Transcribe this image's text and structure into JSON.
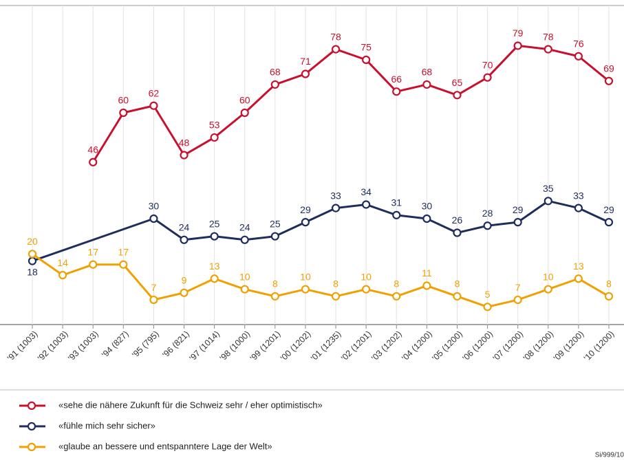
{
  "chart_data": {
    "type": "line",
    "categories": [
      "'91 (1003)",
      "'92 (1003)",
      "'93 (1003)",
      "'94 (827)",
      "'95 (795)",
      "'96 (821)",
      "'97 (1014)",
      "'98 (1000)",
      "'99 (1201)",
      "'00 (1202)",
      "'01 (1235)",
      "'02 (1201)",
      "'03 (1202)",
      "'04 (1200)",
      "'05 (1200)",
      "'06 (1200)",
      "'07 (1200)",
      "'08 (1200)",
      "'09 (1200)",
      "'10 (1200)"
    ],
    "series": [
      {
        "name": "«sehe die nähere Zukunft für die Schweiz sehr / eher optimistisch»",
        "color": "#c8102e",
        "values": [
          null,
          null,
          46,
          60,
          62,
          48,
          53,
          60,
          68,
          71,
          78,
          75,
          66,
          68,
          65,
          70,
          79,
          78,
          76,
          69
        ]
      },
      {
        "name": "«fühle mich sehr sicher»",
        "color": "#1f2d5c",
        "values": [
          18,
          null,
          null,
          null,
          30,
          24,
          25,
          24,
          25,
          29,
          33,
          34,
          31,
          30,
          26,
          28,
          29,
          35,
          33,
          29
        ]
      },
      {
        "name": "«glaube an bessere und entspanntere Lage der Welt»",
        "color": "#f0a000",
        "values": [
          20,
          14,
          17,
          17,
          7,
          9,
          13,
          10,
          8,
          10,
          8,
          10,
          8,
          11,
          8,
          5,
          7,
          10,
          13,
          8
        ]
      }
    ],
    "ylim": [
      0,
      90
    ],
    "grid": true,
    "note": "Si/999/10"
  }
}
